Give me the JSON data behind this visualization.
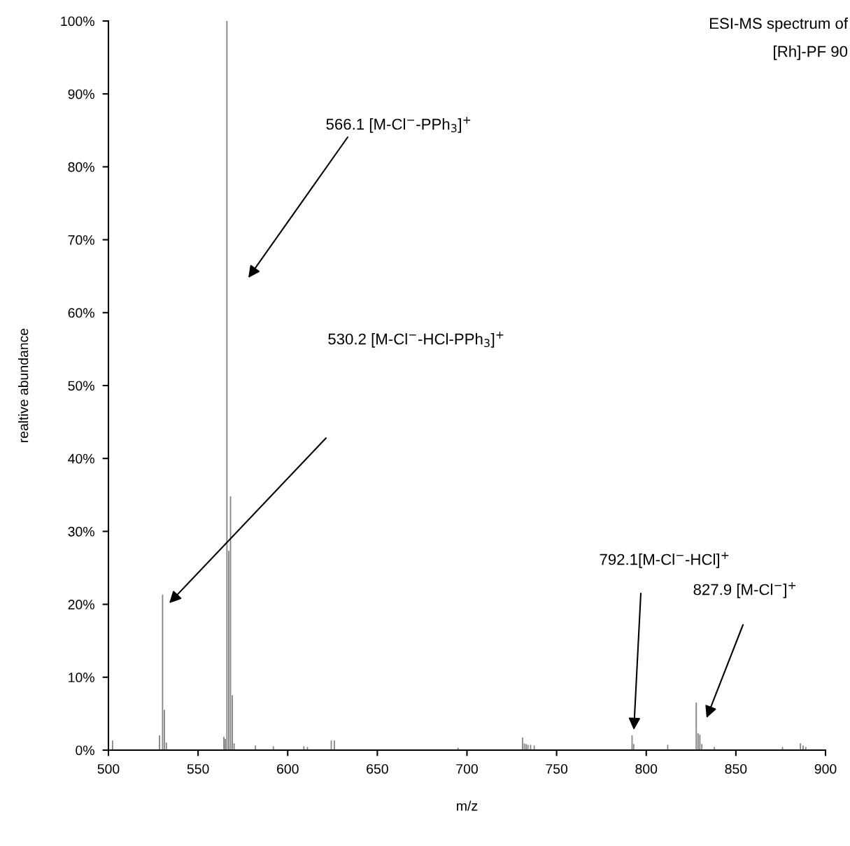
{
  "chart_data": {
    "type": "bar",
    "title": "ESI-MS spectrum of\n[Rh]-PF 90",
    "xlabel": "m/z",
    "ylabel": "realtive abundance",
    "x": [
      502.3,
      528.5,
      530.2,
      531.2,
      532.3,
      564.4,
      565.2,
      566.1,
      567.1,
      568.1,
      569.1,
      570.1,
      582.0,
      592.0,
      609.0,
      611.0,
      624.3,
      626.0,
      695.0,
      731.0,
      732.0,
      733.0,
      734.0,
      735.5,
      737.5,
      792.1,
      793.0,
      812.0,
      827.9,
      828.9,
      829.9,
      831.0,
      838.0,
      876.0,
      886.0,
      887.5,
      889.0
    ],
    "values": [
      1.3,
      2.0,
      21.3,
      5.5,
      1.0,
      1.8,
      1.5,
      100,
      27.3,
      34.8,
      7.5,
      0.9,
      0.6,
      0.5,
      0.5,
      0.4,
      1.3,
      1.3,
      0.3,
      1.7,
      0.9,
      0.8,
      0.7,
      0.7,
      0.6,
      2.0,
      0.8,
      0.7,
      6.5,
      2.3,
      2.1,
      0.8,
      0.4,
      0.4,
      0.9,
      0.6,
      0.4
    ],
    "color": "#808080",
    "xlim": [
      500,
      900
    ],
    "xticks": [
      500,
      550,
      600,
      650,
      700,
      750,
      800,
      850,
      900
    ],
    "ylim": [
      0,
      100
    ],
    "yticks": [
      {
        "value": 0,
        "label": "0%"
      },
      {
        "value": 10,
        "label": "10%"
      },
      {
        "value": 20,
        "label": "20%"
      },
      {
        "value": 30,
        "label": "30%"
      },
      {
        "value": 40,
        "label": "40%"
      },
      {
        "value": 50,
        "label": "50%"
      },
      {
        "value": 60,
        "label": "60%"
      },
      {
        "value": 70,
        "label": "70%"
      },
      {
        "value": 80,
        "label": "80%"
      },
      {
        "value": 90,
        "label": "90%"
      },
      {
        "value": 100,
        "label": "100%"
      }
    ],
    "grid": false,
    "legend": false,
    "annotations": [
      "566.1 [M-Cl$^{−}$-PPh$_{3}$]$^{+}$",
      "530.2 [M-Cl$^{−}$-HCl-PPh$_{3}$]$^{+}$",
      "792.1[M-Cl$^{−}$-HCl]$^{+}$",
      "827.9 [M-Cl$^{−}$]$^{+}$"
    ]
  }
}
